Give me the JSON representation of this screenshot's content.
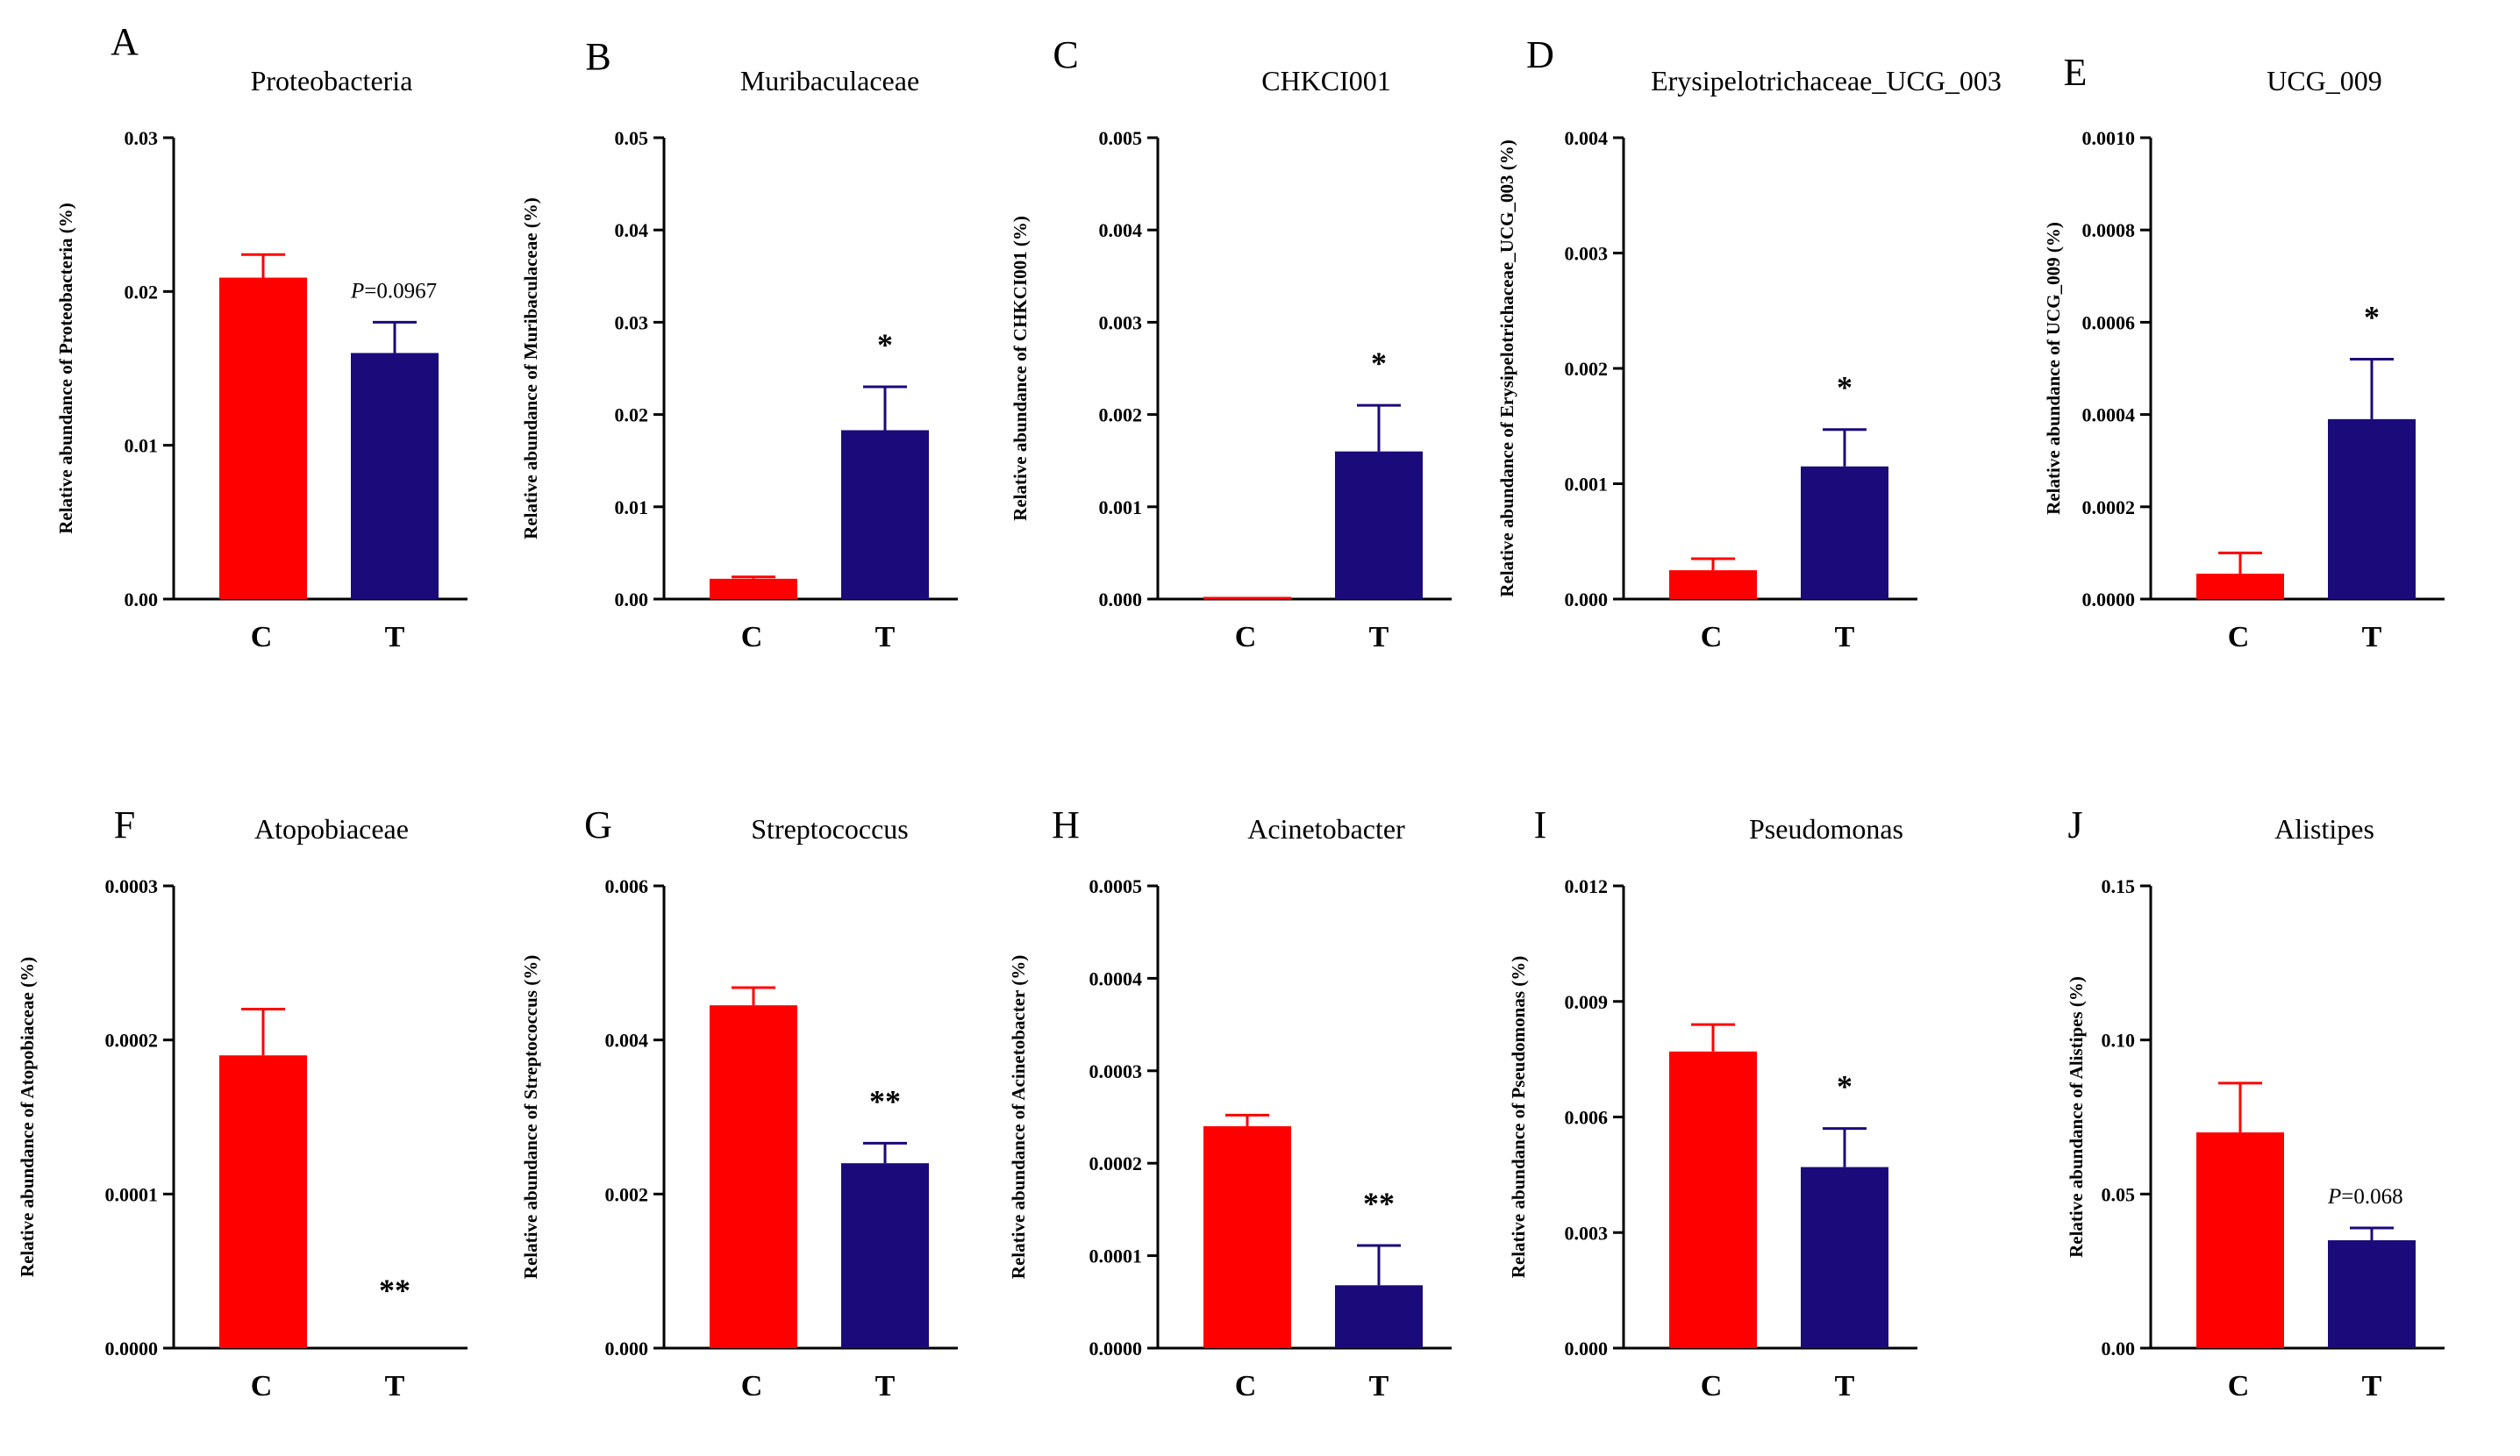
{
  "colors": {
    "control": "#ff0000",
    "treatment": "#1a0a7a",
    "axis": "#000000"
  },
  "chart_data": [
    {
      "type": "bar",
      "letter": "A",
      "title": "Proteobacteria",
      "ylabel": "Relative abundance of Proteobacteria (%)",
      "categories": [
        "C",
        "T"
      ],
      "values": [
        0.0209,
        0.016
      ],
      "errors": [
        0.0015,
        0.002
      ],
      "ylim": [
        0,
        0.03
      ],
      "yticks": [
        "0.00",
        "0.01",
        "0.02",
        "0.03"
      ],
      "annotation": {
        "type": "pvalue",
        "p": "P",
        "rest": "=0.0967"
      }
    },
    {
      "type": "bar",
      "letter": "B",
      "title": "Muribaculaceae",
      "ylabel": "Relative abundance of Muribaculaceae (%)",
      "categories": [
        "C",
        "T"
      ],
      "values": [
        0.0022,
        0.0183
      ],
      "errors": [
        0.0002,
        0.0047
      ],
      "ylim": [
        0,
        0.05
      ],
      "yticks": [
        "0.00",
        "0.01",
        "0.02",
        "0.03",
        "0.04",
        "0.05"
      ],
      "annotation": {
        "type": "sig",
        "text": "*"
      }
    },
    {
      "type": "bar",
      "letter": "C",
      "title": "CHKCI001",
      "ylabel": "Relative abundance of CHKCI001 (%)",
      "categories": [
        "C",
        "T"
      ],
      "values": [
        0.0,
        0.0016
      ],
      "errors": [
        0.0,
        0.0005
      ],
      "ylim": [
        0,
        0.005
      ],
      "yticks": [
        "0.000",
        "0.001",
        "0.002",
        "0.003",
        "0.004",
        "0.005"
      ],
      "annotation": {
        "type": "sig",
        "text": "*"
      }
    },
    {
      "type": "bar",
      "letter": "D",
      "title": "Erysipelotrichaceae_UCG_003",
      "ylabel": "Relative abundance of Erysipelotrichaceae_UCG_003 (%)",
      "categories": [
        "C",
        "T"
      ],
      "values": [
        0.00025,
        0.00115
      ],
      "errors": [
        0.0001,
        0.00032
      ],
      "ylim": [
        0,
        0.004
      ],
      "yticks": [
        "0.000",
        "0.001",
        "0.002",
        "0.003",
        "0.004"
      ],
      "annotation": {
        "type": "sig",
        "text": "*"
      }
    },
    {
      "type": "bar",
      "letter": "E",
      "title": "UCG_009",
      "ylabel": "Relative abundance of UCG_009 (%)",
      "categories": [
        "C",
        "T"
      ],
      "values": [
        5.5e-05,
        0.00039
      ],
      "errors": [
        4.5e-05,
        0.00013
      ],
      "ylim": [
        0,
        0.001
      ],
      "yticks": [
        "0.0000",
        "0.0002",
        "0.0004",
        "0.0006",
        "0.0008",
        "0.0010"
      ],
      "annotation": {
        "type": "sig",
        "text": "*"
      }
    },
    {
      "type": "bar",
      "letter": "F",
      "title": "Atopobiaceae",
      "ylabel": "Relative abundance of Atopobiaceae (%)",
      "categories": [
        "C",
        "T"
      ],
      "values": [
        0.00019,
        0.0
      ],
      "errors": [
        3e-05,
        0.0
      ],
      "ylim": [
        0,
        0.0003
      ],
      "yticks": [
        "0.0000",
        "0.0001",
        "0.0002",
        "0.0003"
      ],
      "annotation": {
        "type": "sig",
        "text": "**"
      }
    },
    {
      "type": "bar",
      "letter": "G",
      "title": "Streptococcus",
      "ylabel": "Relative abundance of Streptococcus (%)",
      "categories": [
        "C",
        "T"
      ],
      "values": [
        0.00445,
        0.0024
      ],
      "errors": [
        0.00023,
        0.00026
      ],
      "ylim": [
        0,
        0.006
      ],
      "yticks": [
        "0.000",
        "0.002",
        "0.004",
        "0.006"
      ],
      "annotation": {
        "type": "sig",
        "text": "**"
      }
    },
    {
      "type": "bar",
      "letter": "H",
      "title": "Acinetobacter",
      "ylabel": "Relative abundance of Acinetobacter (%)",
      "categories": [
        "C",
        "T"
      ],
      "values": [
        0.00024,
        6.8e-05
      ],
      "errors": [
        1.2e-05,
        4.3e-05
      ],
      "ylim": [
        0,
        0.0005
      ],
      "yticks": [
        "0.0000",
        "0.0001",
        "0.0002",
        "0.0003",
        "0.0004",
        "0.0005"
      ],
      "annotation": {
        "type": "sig",
        "text": "**"
      }
    },
    {
      "type": "bar",
      "letter": "I",
      "title": "Pseudomonas",
      "ylabel": "Relative abundance of Pseudomonas (%)",
      "categories": [
        "C",
        "T"
      ],
      "values": [
        0.0077,
        0.0047
      ],
      "errors": [
        0.0007,
        0.001
      ],
      "ylim": [
        0,
        0.012
      ],
      "yticks": [
        "0.000",
        "0.003",
        "0.006",
        "0.009",
        "0.012"
      ],
      "annotation": {
        "type": "sig",
        "text": "*"
      }
    },
    {
      "type": "bar",
      "letter": "J",
      "title": "Alistipes",
      "ylabel": "Relative abundance of Alistipes (%)",
      "categories": [
        "C",
        "T"
      ],
      "values": [
        0.07,
        0.035
      ],
      "errors": [
        0.016,
        0.004
      ],
      "ylim": [
        0,
        0.15
      ],
      "yticks": [
        "0.00",
        "0.05",
        "0.10",
        "0.15"
      ],
      "annotation": {
        "type": "pvalue",
        "p": "P",
        "rest": "=0.068"
      }
    }
  ]
}
